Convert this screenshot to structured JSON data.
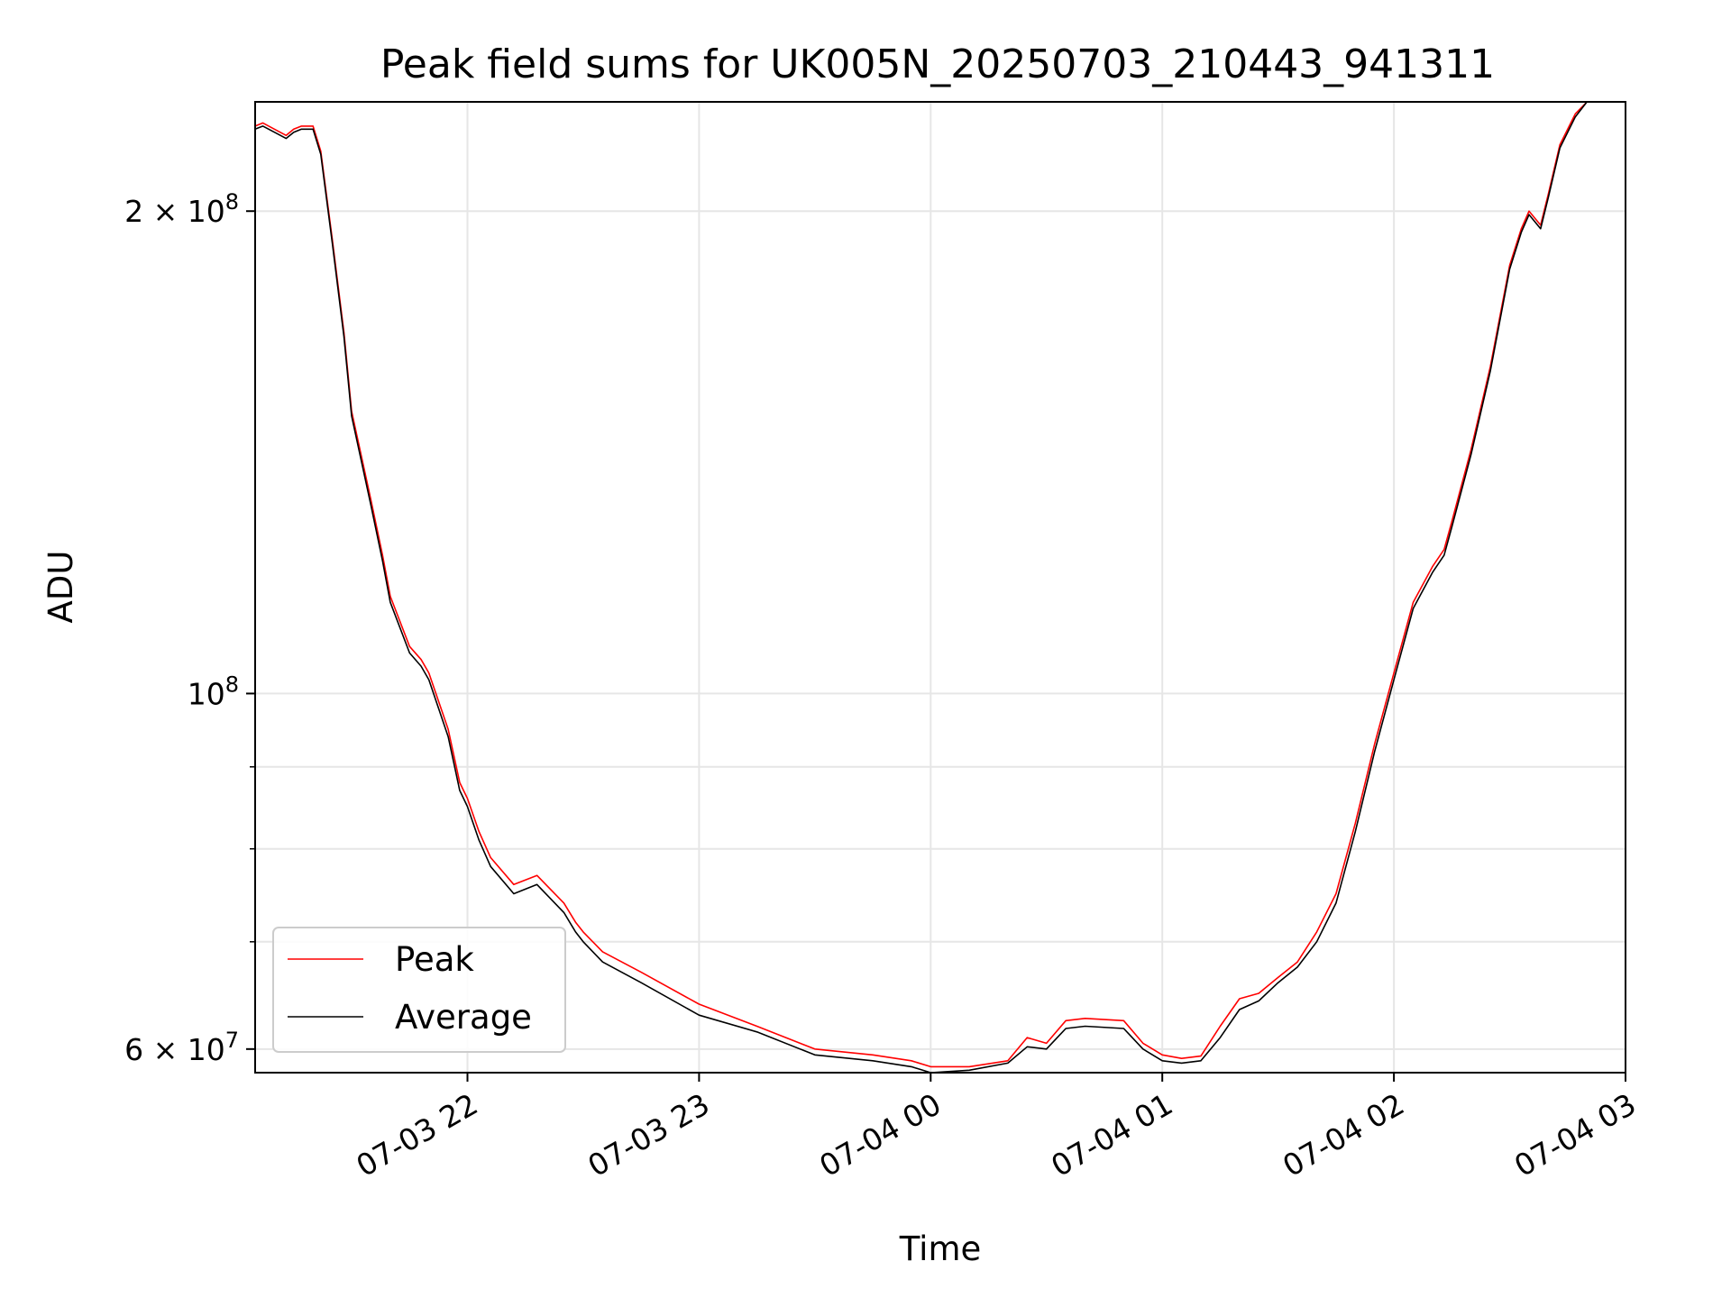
{
  "chart_data": {
    "type": "line",
    "title": "Peak field sums for UK005N_20250703_210443_941311",
    "xlabel": "Time",
    "ylabel": "ADU",
    "y_scale": "log",
    "ylim": [
      58000000,
      234000000
    ],
    "xlim": [
      "07-03 21:05",
      "07-04 03:00"
    ],
    "grid": true,
    "legend_position": "lower-left",
    "x_ticks": [
      "07-03 22",
      "07-03 23",
      "07-04 00",
      "07-04 01",
      "07-04 02",
      "07-04 03"
    ],
    "x_tick_times": [
      "07-03 22:00",
      "07-03 23:00",
      "07-04 00:00",
      "07-04 01:00",
      "07-04 02:00",
      "07-04 03:00"
    ],
    "y_major_ticks": [
      {
        "value": 200000000,
        "mantissa": "2",
        "exponent": "8"
      },
      {
        "value": 100000000,
        "mantissa": "",
        "exponent": "8"
      },
      {
        "value": 60000000,
        "mantissa": "6",
        "exponent": "7"
      }
    ],
    "y_minor_ticks": [
      70000000,
      80000000,
      90000000
    ],
    "series": [
      {
        "name": "Peak",
        "color": "#ff0000",
        "x": [
          "07-03 21:05",
          "07-03 21:07",
          "07-03 21:10",
          "07-03 21:13",
          "07-03 21:15",
          "07-03 21:17",
          "07-03 21:20",
          "07-03 21:22",
          "07-03 21:25",
          "07-03 21:28",
          "07-03 21:30",
          "07-03 21:35",
          "07-03 21:38",
          "07-03 21:40",
          "07-03 21:45",
          "07-03 21:48",
          "07-03 21:50",
          "07-03 21:55",
          "07-03 21:58",
          "07-03 22:00",
          "07-03 22:03",
          "07-03 22:06",
          "07-03 22:12",
          "07-03 22:18",
          "07-03 22:25",
          "07-03 22:28",
          "07-03 22:30",
          "07-03 22:35",
          "07-03 22:45",
          "07-03 23:00",
          "07-03 23:15",
          "07-03 23:30",
          "07-03 23:45",
          "07-03 23:55",
          "07-04 00:00",
          "07-04 00:10",
          "07-04 00:20",
          "07-04 00:25",
          "07-04 00:30",
          "07-04 00:35",
          "07-04 00:40",
          "07-04 00:50",
          "07-04 00:55",
          "07-04 01:00",
          "07-04 01:05",
          "07-04 01:10",
          "07-04 01:15",
          "07-04 01:20",
          "07-04 01:25",
          "07-04 01:30",
          "07-04 01:35",
          "07-04 01:40",
          "07-04 01:45",
          "07-04 01:50",
          "07-04 01:55",
          "07-04 02:00",
          "07-04 02:05",
          "07-04 02:10",
          "07-04 02:13",
          "07-04 02:15",
          "07-04 02:20",
          "07-04 02:25",
          "07-04 02:30",
          "07-04 02:33",
          "07-04 02:35",
          "07-04 02:38",
          "07-04 02:40",
          "07-04 02:43",
          "07-04 02:47",
          "07-04 02:50",
          "07-04 02:55",
          "07-04 03:00"
        ],
        "y": [
          226000000,
          227000000,
          225000000,
          223000000,
          225000000,
          226000000,
          226000000,
          218000000,
          192000000,
          168000000,
          150000000,
          132000000,
          122000000,
          115000000,
          107000000,
          105000000,
          103000000,
          95000000,
          88000000,
          86000000,
          82000000,
          79000000,
          76000000,
          77000000,
          74000000,
          72000000,
          71000000,
          69000000,
          67000000,
          64000000,
          62000000,
          60000000,
          59500000,
          59000000,
          58500000,
          58500000,
          59000000,
          61000000,
          60500000,
          62500000,
          62700000,
          62500000,
          60500000,
          59500000,
          59200000,
          59400000,
          62000000,
          64500000,
          65000000,
          66500000,
          68000000,
          71000000,
          75000000,
          83000000,
          93000000,
          103000000,
          114000000,
          120000000,
          123000000,
          128000000,
          142000000,
          160000000,
          185000000,
          195000000,
          200000000,
          196000000,
          205000000,
          220000000,
          230000000,
          234000000,
          234000000,
          234000000
        ]
      },
      {
        "name": "Average",
        "color": "#000000",
        "x": [
          "07-03 21:05",
          "07-03 21:07",
          "07-03 21:10",
          "07-03 21:13",
          "07-03 21:15",
          "07-03 21:17",
          "07-03 21:20",
          "07-03 21:22",
          "07-03 21:25",
          "07-03 21:28",
          "07-03 21:30",
          "07-03 21:35",
          "07-03 21:38",
          "07-03 21:40",
          "07-03 21:45",
          "07-03 21:48",
          "07-03 21:50",
          "07-03 21:55",
          "07-03 21:58",
          "07-03 22:00",
          "07-03 22:03",
          "07-03 22:06",
          "07-03 22:12",
          "07-03 22:18",
          "07-03 22:25",
          "07-03 22:28",
          "07-03 22:30",
          "07-03 22:35",
          "07-03 22:45",
          "07-03 23:00",
          "07-03 23:15",
          "07-03 23:30",
          "07-03 23:45",
          "07-03 23:55",
          "07-04 00:00",
          "07-04 00:10",
          "07-04 00:20",
          "07-04 00:25",
          "07-04 00:30",
          "07-04 00:35",
          "07-04 00:40",
          "07-04 00:50",
          "07-04 00:55",
          "07-04 01:00",
          "07-04 01:05",
          "07-04 01:10",
          "07-04 01:15",
          "07-04 01:20",
          "07-04 01:25",
          "07-04 01:30",
          "07-04 01:35",
          "07-04 01:40",
          "07-04 01:45",
          "07-04 01:50",
          "07-04 01:55",
          "07-04 02:00",
          "07-04 02:05",
          "07-04 02:10",
          "07-04 02:13",
          "07-04 02:15",
          "07-04 02:20",
          "07-04 02:25",
          "07-04 02:30",
          "07-04 02:33",
          "07-04 02:35",
          "07-04 02:38",
          "07-04 02:40",
          "07-04 02:43",
          "07-04 02:47",
          "07-04 02:50",
          "07-04 02:55",
          "07-04 03:00"
        ],
        "y": [
          225000000,
          226000000,
          224000000,
          222000000,
          224000000,
          225000000,
          225000000,
          217000000,
          191000000,
          167000000,
          149000000,
          131000000,
          121000000,
          114000000,
          106000000,
          104000000,
          102000000,
          94000000,
          87000000,
          85000000,
          81000000,
          78000000,
          75000000,
          76000000,
          73000000,
          71000000,
          70000000,
          68000000,
          66000000,
          63000000,
          61500000,
          59500000,
          59000000,
          58500000,
          58000000,
          58200000,
          58800000,
          60200000,
          60000000,
          61800000,
          62000000,
          61800000,
          60000000,
          59000000,
          58800000,
          59000000,
          61000000,
          63500000,
          64300000,
          66000000,
          67500000,
          70000000,
          74000000,
          82000000,
          92000000,
          102000000,
          113000000,
          119000000,
          122000000,
          127000000,
          141000000,
          159000000,
          184000000,
          194000000,
          199000000,
          195000000,
          204000000,
          219000000,
          229000000,
          234000000,
          234000000,
          234000000
        ]
      }
    ]
  }
}
